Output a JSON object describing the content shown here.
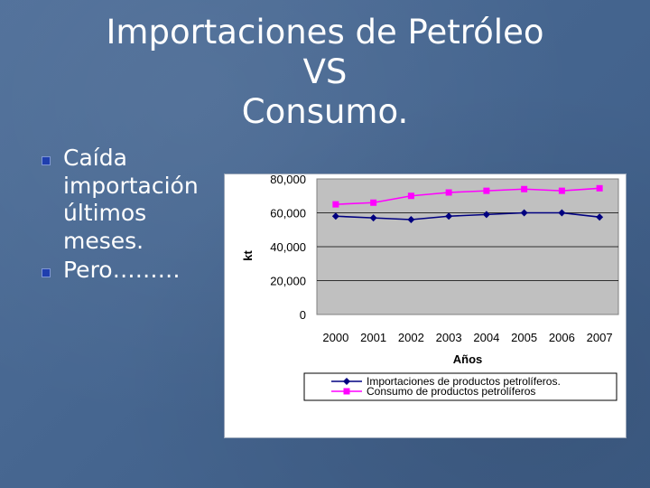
{
  "slide": {
    "title_lines": [
      "Importaciones de Petróleo",
      "VS",
      "Consumo."
    ],
    "bullets": [
      "Caída importación últimos meses.",
      "Pero………"
    ]
  },
  "colors": {
    "background": "#4a6a94",
    "import_series": "#000080",
    "consumption_series": "#ff00ff",
    "plot_area": "#c0c0c0"
  },
  "chart_data": {
    "type": "line",
    "x": [
      "2000",
      "2001",
      "2002",
      "2003",
      "2004",
      "2005",
      "2006",
      "2007"
    ],
    "xlabel": "Años",
    "ylabel": "kt",
    "ylim": [
      0,
      80000
    ],
    "yticks": [
      "0",
      "20,000",
      "40,000",
      "60,000",
      "80,000"
    ],
    "grid": true,
    "legend_position": "bottom",
    "series": [
      {
        "name": "Importaciones de productos petrolíferos.",
        "values": [
          58000,
          57000,
          56000,
          58000,
          59000,
          60000,
          60000,
          57500
        ],
        "color": "#000080",
        "marker": "diamond"
      },
      {
        "name": "Consumo de productos petrolíferos",
        "values": [
          65000,
          66000,
          70000,
          72000,
          73000,
          74000,
          73000,
          74500
        ],
        "color": "#ff00ff",
        "marker": "square"
      }
    ]
  }
}
